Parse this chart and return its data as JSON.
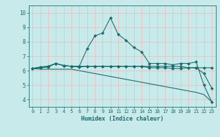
{
  "title": "",
  "xlabel": "Humidex (Indice chaleur)",
  "bg_color": "#c8eaea",
  "grid_color": "#f0b8b8",
  "line_color": "#1a6b6b",
  "xlim": [
    -0.5,
    23.5
  ],
  "ylim": [
    3.5,
    10.5
  ],
  "xticks": [
    0,
    1,
    2,
    3,
    4,
    5,
    6,
    7,
    8,
    9,
    10,
    11,
    12,
    13,
    14,
    15,
    16,
    17,
    18,
    19,
    20,
    21,
    22,
    23
  ],
  "yticks": [
    4,
    5,
    6,
    7,
    8,
    9,
    10
  ],
  "series": [
    [
      6.15,
      6.25,
      6.3,
      6.5,
      6.35,
      6.3,
      6.3,
      7.5,
      8.4,
      8.6,
      9.65,
      8.5,
      8.1,
      7.6,
      7.3,
      6.5,
      6.5,
      6.5,
      6.4,
      6.5,
      6.5,
      6.6,
      5.0,
      3.85
    ],
    [
      6.15,
      6.25,
      6.3,
      6.5,
      6.35,
      6.3,
      6.3,
      6.3,
      6.3,
      6.3,
      6.3,
      6.3,
      6.3,
      6.3,
      6.3,
      6.3,
      6.3,
      6.3,
      6.3,
      6.3,
      6.2,
      6.2,
      6.2,
      6.2
    ],
    [
      6.15,
      6.2,
      6.25,
      6.5,
      6.35,
      6.3,
      6.25,
      6.3,
      6.3,
      6.3,
      6.3,
      6.3,
      6.3,
      6.3,
      6.3,
      6.2,
      6.2,
      6.2,
      6.15,
      6.15,
      6.2,
      6.2,
      5.8,
      4.8
    ],
    [
      6.15,
      6.1,
      6.1,
      6.1,
      6.1,
      6.1,
      6.0,
      5.9,
      5.8,
      5.7,
      5.6,
      5.5,
      5.4,
      5.3,
      5.2,
      5.1,
      5.0,
      4.9,
      4.8,
      4.7,
      4.6,
      4.5,
      4.35,
      3.85
    ]
  ],
  "markers": [
    true,
    true,
    true,
    false
  ]
}
